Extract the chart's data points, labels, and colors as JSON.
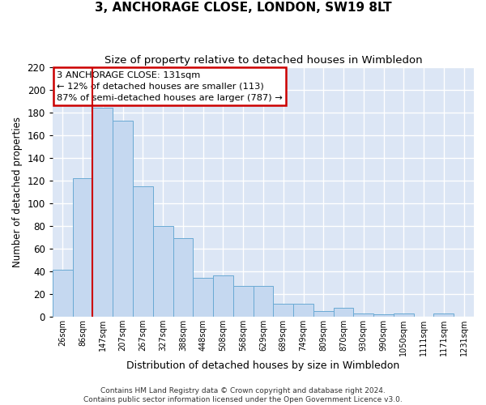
{
  "title": "3, ANCHORAGE CLOSE, LONDON, SW19 8LT",
  "subtitle": "Size of property relative to detached houses in Wimbledon",
  "xlabel": "Distribution of detached houses by size in Wimbledon",
  "ylabel": "Number of detached properties",
  "categories": [
    "26sqm",
    "86sqm",
    "147sqm",
    "207sqm",
    "267sqm",
    "327sqm",
    "388sqm",
    "448sqm",
    "508sqm",
    "568sqm",
    "629sqm",
    "689sqm",
    "749sqm",
    "809sqm",
    "870sqm",
    "930sqm",
    "990sqm",
    "1050sqm",
    "1111sqm",
    "1171sqm",
    "1231sqm"
  ],
  "values": [
    41,
    122,
    184,
    173,
    115,
    80,
    69,
    34,
    36,
    27,
    27,
    11,
    11,
    5,
    8,
    3,
    2,
    3,
    0,
    3,
    0
  ],
  "bar_color": "#c5d8f0",
  "bar_edge_color": "#6aaad4",
  "bg_color": "#dce6f5",
  "grid_color": "#ffffff",
  "red_line_index": 2,
  "annotation_text": "3 ANCHORAGE CLOSE: 131sqm\n← 12% of detached houses are smaller (113)\n87% of semi-detached houses are larger (787) →",
  "annotation_box_color": "#ffffff",
  "annotation_box_edge": "#cc0000",
  "footer": "Contains HM Land Registry data © Crown copyright and database right 2024.\nContains public sector information licensed under the Open Government Licence v3.0.",
  "ylim": [
    0,
    220
  ],
  "yticks": [
    0,
    20,
    40,
    60,
    80,
    100,
    120,
    140,
    160,
    180,
    200,
    220
  ],
  "fig_bg": "#ffffff"
}
